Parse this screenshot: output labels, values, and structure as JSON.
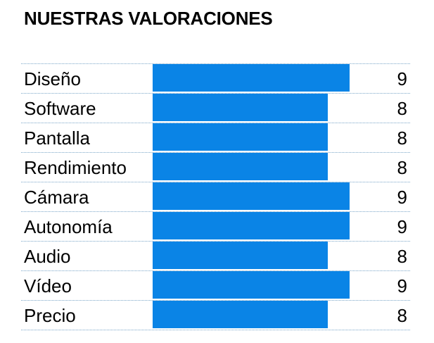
{
  "chart_data": {
    "type": "bar",
    "orientation": "horizontal",
    "title": "NUESTRAS VALORACIONES",
    "categories": [
      "Diseño",
      "Software",
      "Pantalla",
      "Rendimiento",
      "Cámara",
      "Autonomía",
      "Audio",
      "Vídeo",
      "Precio"
    ],
    "values": [
      9,
      8,
      8,
      8,
      9,
      9,
      8,
      9,
      8
    ],
    "value_labels": [
      "9",
      "8",
      "8",
      "8",
      "9",
      "9",
      "8",
      "9",
      "8"
    ],
    "xlim": [
      0,
      10
    ],
    "grid": false,
    "bar_color": "#0a84e6",
    "separator_color": "#7aa6c8"
  }
}
